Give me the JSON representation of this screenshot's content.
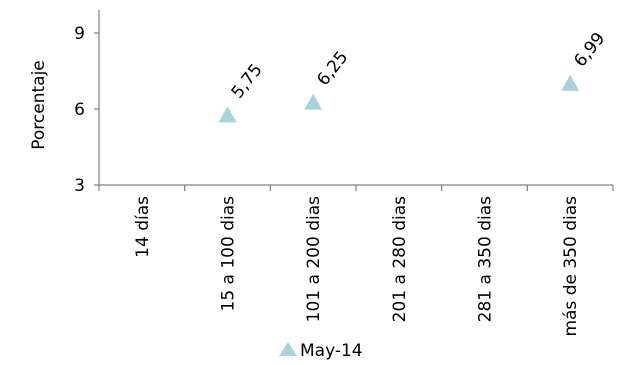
{
  "chart_data": {
    "type": "scatter",
    "ylabel": "Porcentaje",
    "xlabel": "",
    "title": "",
    "ylim": [
      3,
      10
    ],
    "yticks": [
      3,
      6,
      9
    ],
    "categories": [
      "14 días",
      "15 a 100 dias",
      "101 a 200 dias",
      "201 a 280 dias",
      "281 a 350 dias",
      "más de 350 dias"
    ],
    "series": [
      {
        "name": "May-14",
        "color": "#a8d3dc",
        "marker": "triangle",
        "values": [
          null,
          5.75,
          6.25,
          null,
          null,
          6.99
        ],
        "labels": [
          null,
          "5,75",
          "6,25",
          null,
          null,
          "6,99"
        ]
      }
    ],
    "legend_position": "bottom",
    "grid": false
  }
}
